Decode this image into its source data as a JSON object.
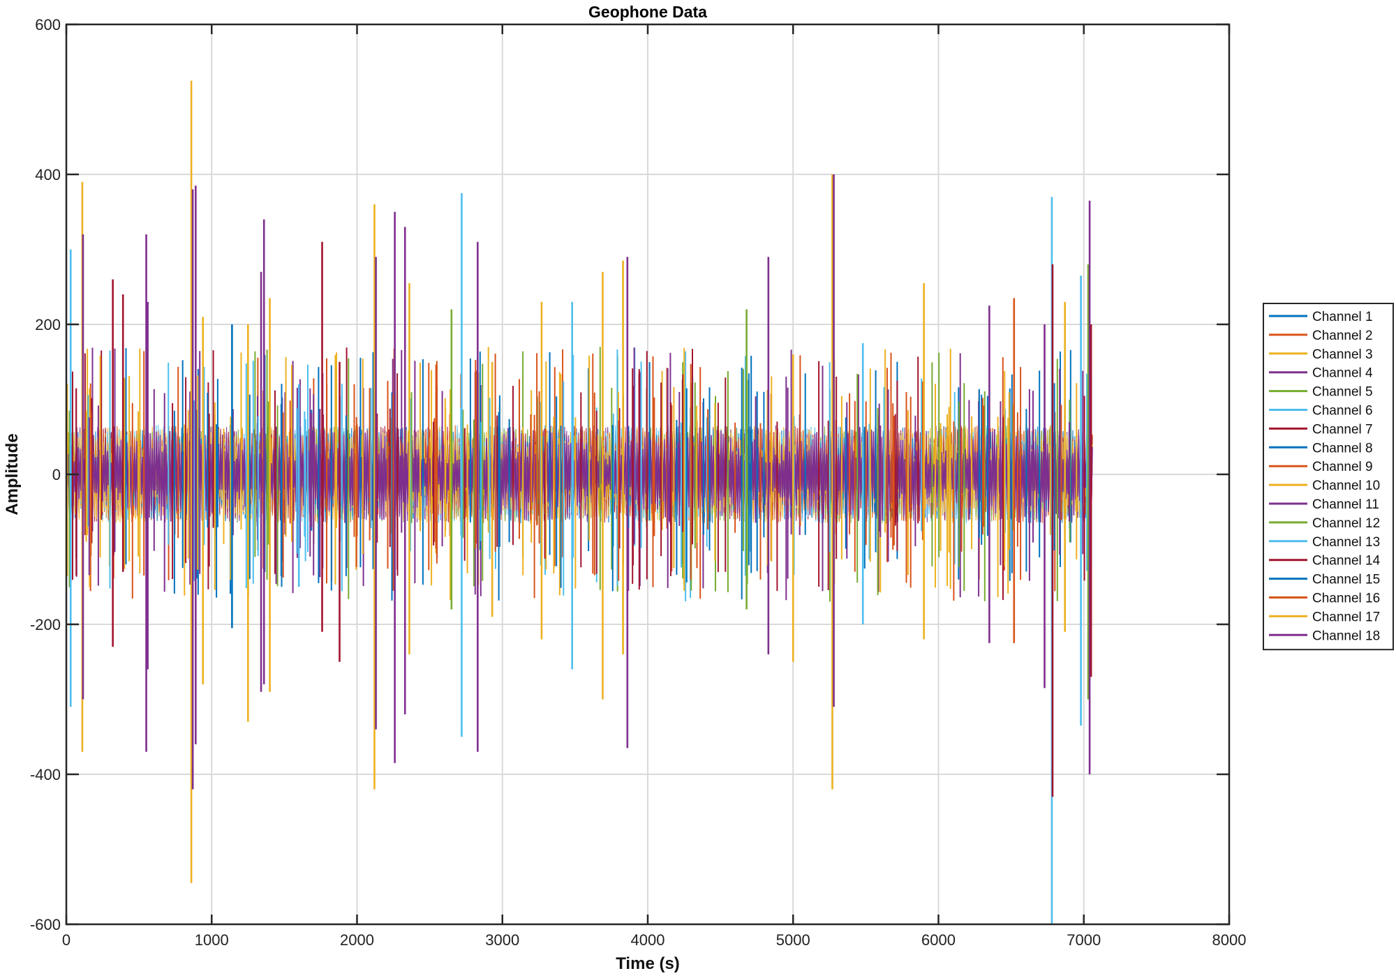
{
  "chart_data": {
    "type": "line",
    "title": "Geophone Data",
    "xlabel": "Time (s)",
    "ylabel": "Amplitude",
    "xlim": [
      0,
      8000
    ],
    "ylim": [
      -600,
      600
    ],
    "xticks": [
      0,
      1000,
      2000,
      3000,
      4000,
      5000,
      6000,
      7000,
      8000
    ],
    "yticks": [
      -600,
      -400,
      -200,
      0,
      200,
      400,
      600
    ],
    "xtick_labels": [
      "0",
      "1000",
      "2000",
      "3000",
      "4000",
      "5000",
      "6000",
      "7000",
      "8000"
    ],
    "ytick_labels": [
      "-600",
      "-400",
      "-200",
      "0",
      "200",
      "400",
      "600"
    ],
    "grid": true,
    "legend_position": "right",
    "data_x_range": [
      0,
      7060
    ],
    "noise_band_amplitude": 60,
    "series": [
      {
        "name": "Channel 1",
        "color": "#0072BD"
      },
      {
        "name": "Channel 2",
        "color": "#D95319"
      },
      {
        "name": "Channel 3",
        "color": "#EDB120"
      },
      {
        "name": "Channel 4",
        "color": "#7E2F8E"
      },
      {
        "name": "Channel 5",
        "color": "#77AC30"
      },
      {
        "name": "Channel 6",
        "color": "#4DBEEE"
      },
      {
        "name": "Channel 7",
        "color": "#A2142F"
      },
      {
        "name": "Channel 8",
        "color": "#0072BD"
      },
      {
        "name": "Channel 9",
        "color": "#D95319"
      },
      {
        "name": "Channel 10",
        "color": "#EDB120"
      },
      {
        "name": "Channel 11",
        "color": "#7E2F8E"
      },
      {
        "name": "Channel 12",
        "color": "#77AC30"
      },
      {
        "name": "Channel 13",
        "color": "#4DBEEE"
      },
      {
        "name": "Channel 14",
        "color": "#A2142F"
      },
      {
        "name": "Channel 15",
        "color": "#0072BD"
      },
      {
        "name": "Channel 16",
        "color": "#D95319"
      },
      {
        "name": "Channel 17",
        "color": "#EDB120"
      },
      {
        "name": "Channel 18",
        "color": "#7E2F8E"
      }
    ],
    "spikes": [
      {
        "x": 30,
        "hi": 300,
        "lo": -310,
        "color": "#4DBEEE"
      },
      {
        "x": 110,
        "hi": 390,
        "lo": -370,
        "color": "#EDB120"
      },
      {
        "x": 115,
        "hi": 320,
        "lo": -300,
        "color": "#7E2F8E"
      },
      {
        "x": 320,
        "hi": 260,
        "lo": -230,
        "color": "#A2142F"
      },
      {
        "x": 390,
        "hi": 240,
        "lo": -130,
        "color": "#A2142F"
      },
      {
        "x": 550,
        "hi": 320,
        "lo": -370,
        "color": "#7E2F8E"
      },
      {
        "x": 560,
        "hi": 230,
        "lo": -260,
        "color": "#7E2F8E"
      },
      {
        "x": 860,
        "hi": 525,
        "lo": -545,
        "color": "#EDB120"
      },
      {
        "x": 870,
        "hi": 380,
        "lo": -420,
        "color": "#7E2F8E"
      },
      {
        "x": 890,
        "hi": 385,
        "lo": -360,
        "color": "#7E2F8E"
      },
      {
        "x": 940,
        "hi": 210,
        "lo": -280,
        "color": "#EDB120"
      },
      {
        "x": 1140,
        "hi": 200,
        "lo": -205,
        "color": "#0072BD"
      },
      {
        "x": 1250,
        "hi": 200,
        "lo": -330,
        "color": "#EDB120"
      },
      {
        "x": 1340,
        "hi": 270,
        "lo": -290,
        "color": "#7E2F8E"
      },
      {
        "x": 1360,
        "hi": 340,
        "lo": -280,
        "color": "#7E2F8E"
      },
      {
        "x": 1400,
        "hi": 235,
        "lo": -290,
        "color": "#EDB120"
      },
      {
        "x": 1600,
        "hi": 120,
        "lo": -150,
        "color": "#4DBEEE"
      },
      {
        "x": 1760,
        "hi": 310,
        "lo": -210,
        "color": "#A2142F"
      },
      {
        "x": 1880,
        "hi": 150,
        "lo": -250,
        "color": "#A2142F"
      },
      {
        "x": 2120,
        "hi": 360,
        "lo": -420,
        "color": "#EDB120"
      },
      {
        "x": 2130,
        "hi": 290,
        "lo": -340,
        "color": "#7E2F8E"
      },
      {
        "x": 2260,
        "hi": 350,
        "lo": -385,
        "color": "#7E2F8E"
      },
      {
        "x": 2330,
        "hi": 330,
        "lo": -320,
        "color": "#7E2F8E"
      },
      {
        "x": 2360,
        "hi": 255,
        "lo": -240,
        "color": "#EDB120"
      },
      {
        "x": 2650,
        "hi": 220,
        "lo": -180,
        "color": "#77AC30"
      },
      {
        "x": 2720,
        "hi": 375,
        "lo": -350,
        "color": "#4DBEEE"
      },
      {
        "x": 2830,
        "hi": 310,
        "lo": -370,
        "color": "#7E2F8E"
      },
      {
        "x": 2930,
        "hi": 150,
        "lo": -190,
        "color": "#EDB120"
      },
      {
        "x": 3270,
        "hi": 230,
        "lo": -220,
        "color": "#EDB120"
      },
      {
        "x": 3480,
        "hi": 230,
        "lo": -260,
        "color": "#4DBEEE"
      },
      {
        "x": 3690,
        "hi": 270,
        "lo": -300,
        "color": "#EDB120"
      },
      {
        "x": 3830,
        "hi": 285,
        "lo": -240,
        "color": "#EDB120"
      },
      {
        "x": 3860,
        "hi": 290,
        "lo": -365,
        "color": "#7E2F8E"
      },
      {
        "x": 4680,
        "hi": 220,
        "lo": -180,
        "color": "#77AC30"
      },
      {
        "x": 4830,
        "hi": 290,
        "lo": -240,
        "color": "#7E2F8E"
      },
      {
        "x": 5000,
        "hi": 160,
        "lo": -250,
        "color": "#EDB120"
      },
      {
        "x": 5270,
        "hi": 400,
        "lo": -420,
        "color": "#EDB120"
      },
      {
        "x": 5280,
        "hi": 400,
        "lo": -310,
        "color": "#7E2F8E"
      },
      {
        "x": 5480,
        "hi": 175,
        "lo": -200,
        "color": "#4DBEEE"
      },
      {
        "x": 5900,
        "hi": 255,
        "lo": -220,
        "color": "#EDB120"
      },
      {
        "x": 6350,
        "hi": 225,
        "lo": -225,
        "color": "#7E2F8E"
      },
      {
        "x": 6520,
        "hi": 235,
        "lo": -225,
        "color": "#D95319"
      },
      {
        "x": 6730,
        "hi": 200,
        "lo": -285,
        "color": "#7E2F8E"
      },
      {
        "x": 6780,
        "hi": 370,
        "lo": -600,
        "color": "#4DBEEE"
      },
      {
        "x": 6785,
        "hi": 280,
        "lo": -430,
        "color": "#A2142F"
      },
      {
        "x": 6870,
        "hi": 230,
        "lo": -210,
        "color": "#EDB120"
      },
      {
        "x": 6980,
        "hi": 265,
        "lo": -335,
        "color": "#4DBEEE"
      },
      {
        "x": 7030,
        "hi": 280,
        "lo": -300,
        "color": "#77AC30"
      },
      {
        "x": 7040,
        "hi": 365,
        "lo": -400,
        "color": "#7E2F8E"
      },
      {
        "x": 7050,
        "hi": 200,
        "lo": -270,
        "color": "#A2142F"
      }
    ]
  }
}
